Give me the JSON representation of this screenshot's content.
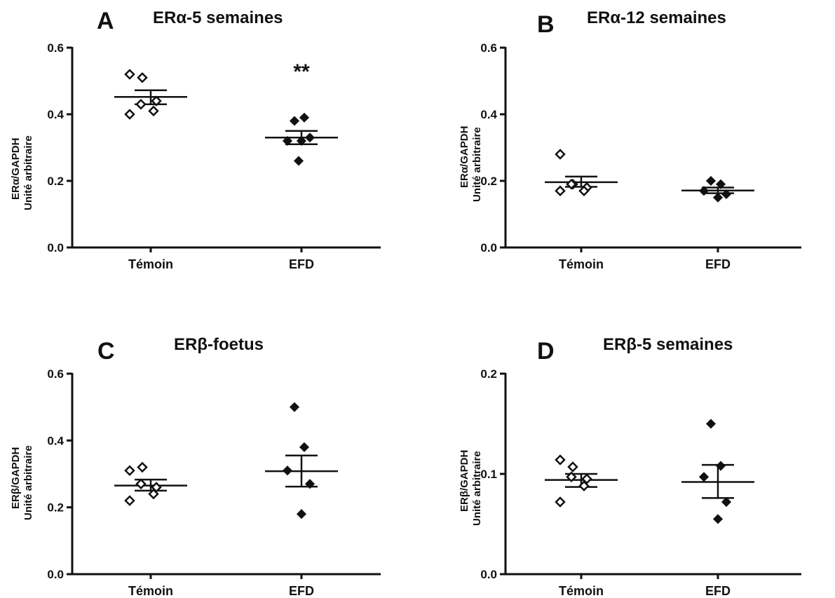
{
  "chart_data": [
    {
      "type": "scatter",
      "panel_letter": "A",
      "title": "ERα-5 semaines",
      "ylabel_line1": "ERα/GAPDH",
      "ylabel_line2": "Unité arbitraire",
      "categories": [
        "Témoin",
        "EFD"
      ],
      "ylim": [
        0,
        0.6
      ],
      "yticks": [
        "0.0",
        "0.2",
        "0.4",
        "0.6"
      ],
      "yticks_values": [
        0,
        0.2,
        0.4,
        0.6
      ],
      "annotation": "**",
      "annotation_category": "EFD",
      "series": [
        {
          "category": "Témoin",
          "marker": "open-diamond",
          "points": [
            0.52,
            0.51,
            0.43,
            0.44,
            0.41,
            0.4
          ],
          "mean": 0.452,
          "sem_low": 0.43,
          "sem_high": 0.472
        },
        {
          "category": "EFD",
          "marker": "filled-diamond",
          "points": [
            0.38,
            0.39,
            0.32,
            0.33,
            0.32,
            0.26
          ],
          "mean": 0.33,
          "sem_low": 0.31,
          "sem_high": 0.35
        }
      ]
    },
    {
      "type": "scatter",
      "panel_letter": "B",
      "title": "ERα-12 semaines",
      "ylabel_line1": "ERα/GAPDH",
      "ylabel_line2": "Unité arbitraire",
      "categories": [
        "Témoin",
        "EFD"
      ],
      "ylim": [
        0,
        0.6
      ],
      "yticks": [
        "0.0",
        "0.2",
        "0.4",
        "0.6"
      ],
      "yticks_values": [
        0,
        0.2,
        0.4,
        0.6
      ],
      "annotation": "",
      "series": [
        {
          "category": "Témoin",
          "marker": "open-diamond",
          "points": [
            0.28,
            0.19,
            0.19,
            0.18,
            0.17,
            0.17
          ],
          "mean": 0.196,
          "sem_low": 0.182,
          "sem_high": 0.213
        },
        {
          "category": "EFD",
          "marker": "filled-diamond",
          "points": [
            0.2,
            0.19,
            0.17,
            0.16,
            0.15
          ],
          "mean": 0.171,
          "sem_low": 0.163,
          "sem_high": 0.18
        }
      ]
    },
    {
      "type": "scatter",
      "panel_letter": "C",
      "title": "ERβ-foetus",
      "ylabel_line1": "ERβ/GAPDH",
      "ylabel_line2": "Unité arbitraire",
      "categories": [
        "Témoin",
        "EFD"
      ],
      "ylim": [
        0,
        0.6
      ],
      "yticks": [
        "0.0",
        "0.2",
        "0.4",
        "0.6"
      ],
      "yticks_values": [
        0,
        0.2,
        0.4,
        0.6
      ],
      "annotation": "",
      "series": [
        {
          "category": "Témoin",
          "marker": "open-diamond",
          "points": [
            0.31,
            0.32,
            0.27,
            0.26,
            0.24,
            0.22
          ],
          "mean": 0.265,
          "sem_low": 0.25,
          "sem_high": 0.283
        },
        {
          "category": "EFD",
          "marker": "filled-diamond",
          "points": [
            0.5,
            0.38,
            0.31,
            0.27,
            0.18
          ],
          "mean": 0.308,
          "sem_low": 0.262,
          "sem_high": 0.355
        }
      ]
    },
    {
      "type": "scatter",
      "panel_letter": "D",
      "title": "ERβ-5 semaines",
      "ylabel_line1": "ERβ/GAPDH",
      "ylabel_line2": "Unité arbitraire",
      "categories": [
        "Témoin",
        "EFD"
      ],
      "ylim": [
        0,
        0.2
      ],
      "yticks": [
        "0.0",
        "0.1",
        "0.2"
      ],
      "yticks_values": [
        0,
        0.1,
        0.2
      ],
      "annotation": "",
      "series": [
        {
          "category": "Témoin",
          "marker": "open-diamond",
          "points": [
            0.114,
            0.107,
            0.097,
            0.095,
            0.088,
            0.072
          ],
          "mean": 0.094,
          "sem_low": 0.087,
          "sem_high": 0.1
        },
        {
          "category": "EFD",
          "marker": "filled-diamond",
          "points": [
            0.15,
            0.108,
            0.097,
            0.072,
            0.055
          ],
          "mean": 0.092,
          "sem_low": 0.076,
          "sem_high": 0.109
        }
      ]
    }
  ]
}
